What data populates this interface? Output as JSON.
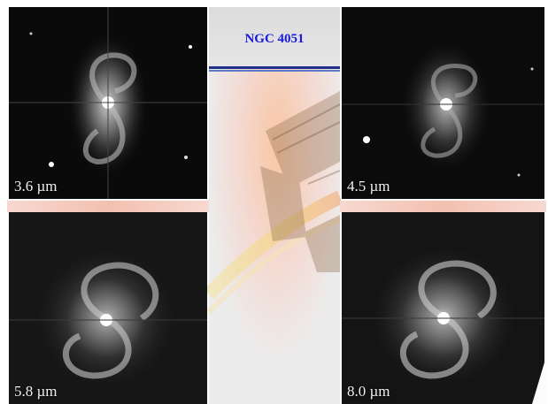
{
  "title": "NGC 4051",
  "panels": [
    {
      "id": "p1",
      "label": "3.6 µm"
    },
    {
      "id": "p2",
      "label": "4.5 µm"
    },
    {
      "id": "p3",
      "label": "5.8 µm"
    },
    {
      "id": "p4",
      "label": "8.0 µm"
    }
  ],
  "colors": {
    "title": "#1a1adb",
    "rule_dark": "#1f2f8a",
    "rule_light": "#5a79c9",
    "backdrop_glow": "#f6a86a"
  }
}
